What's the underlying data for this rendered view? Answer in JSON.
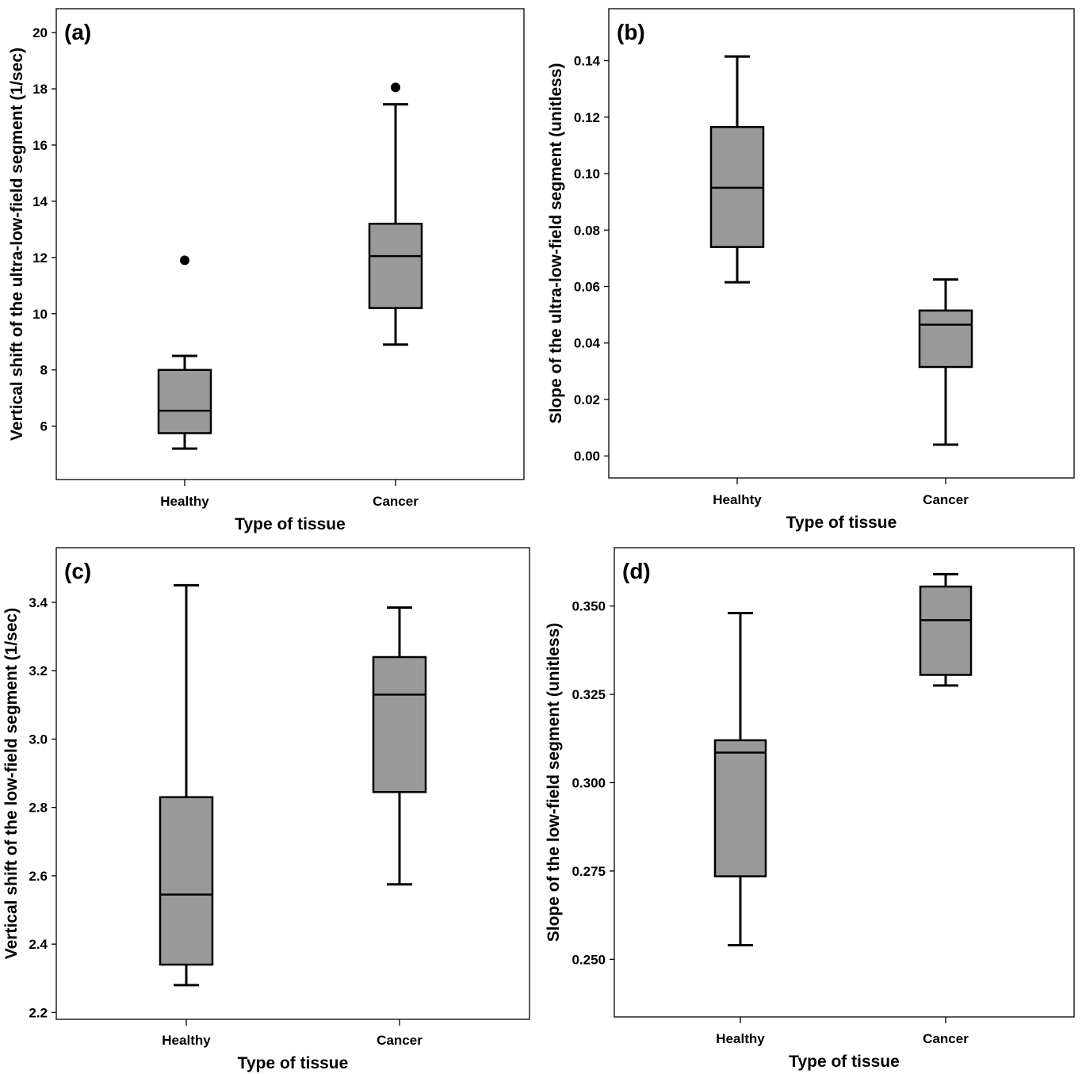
{
  "colors": {
    "box_fill": "#999999",
    "stroke": "#000000",
    "background": "#ffffff"
  },
  "chart_data": [
    {
      "type": "box",
      "panel_label": "(a)",
      "xlabel": "Type of tissue",
      "ylabel": "Vertical shift of the ultra-low-field segment (1/sec)",
      "ylim": [
        4.1,
        20.85
      ],
      "yticks": [
        6,
        8,
        10,
        12,
        14,
        16,
        18,
        20
      ],
      "ytick_labels": [
        "6",
        "8",
        "10",
        "12",
        "14",
        "16",
        "18",
        "20"
      ],
      "categories": [
        "Healthy",
        "Cancer"
      ],
      "boxes": [
        {
          "category": "Healthy",
          "whisker_low": 5.2,
          "q1": 5.75,
          "median": 6.55,
          "q3": 8.0,
          "whisker_high": 8.5,
          "outliers": [
            11.9
          ]
        },
        {
          "category": "Cancer",
          "whisker_low": 8.9,
          "q1": 10.2,
          "median": 12.05,
          "q3": 13.2,
          "whisker_high": 17.45,
          "outliers": [
            18.05
          ]
        }
      ]
    },
    {
      "type": "box",
      "panel_label": "(b)",
      "xlabel": "Type of tissue",
      "ylabel": "Slope of the ultra-low-field segment (unitless)",
      "ylim": [
        -0.0078,
        0.1584
      ],
      "yticks": [
        0.0,
        0.02,
        0.04,
        0.06,
        0.08,
        0.1,
        0.12,
        0.14
      ],
      "ytick_labels": [
        "0.00",
        "0.02",
        "0.04",
        "0.06",
        "0.08",
        "0.10",
        "0.12",
        "0.14"
      ],
      "categories": [
        "Healhty",
        "Cancer"
      ],
      "boxes": [
        {
          "category": "Healhty",
          "whisker_low": 0.0615,
          "q1": 0.074,
          "median": 0.095,
          "q3": 0.1165,
          "whisker_high": 0.1415,
          "outliers": []
        },
        {
          "category": "Cancer",
          "whisker_low": 0.004,
          "q1": 0.0315,
          "median": 0.0465,
          "q3": 0.0515,
          "whisker_high": 0.0625,
          "outliers": []
        }
      ]
    },
    {
      "type": "box",
      "panel_label": "(c)",
      "xlabel": "Type of tissue",
      "ylabel": "Vertical shift of the low-field segment (1/sec)",
      "ylim": [
        2.18,
        3.56
      ],
      "yticks": [
        2.2,
        2.4,
        2.6,
        2.8,
        3.0,
        3.2,
        3.4
      ],
      "ytick_labels": [
        "2.2",
        "2.4",
        "2.6",
        "2.8",
        "3.0",
        "3.2",
        "3.4"
      ],
      "categories": [
        "Healthy",
        "Cancer"
      ],
      "boxes": [
        {
          "category": "Healthy",
          "whisker_low": 2.28,
          "q1": 2.34,
          "median": 2.545,
          "q3": 2.83,
          "whisker_high": 3.45,
          "outliers": []
        },
        {
          "category": "Cancer",
          "whisker_low": 2.575,
          "q1": 2.845,
          "median": 3.13,
          "q3": 3.24,
          "whisker_high": 3.385,
          "outliers": []
        }
      ]
    },
    {
      "type": "box",
      "panel_label": "(d)",
      "xlabel": "Type of tissue",
      "ylabel": "Slope of the low-field segment (unitless)",
      "ylim": [
        0.2337,
        0.3665
      ],
      "yticks": [
        0.25,
        0.275,
        0.3,
        0.325,
        0.35
      ],
      "ytick_labels": [
        "0.250",
        "0.275",
        "0.300",
        "0.325",
        "0.350"
      ],
      "categories": [
        "Healthy",
        "Cancer"
      ],
      "boxes": [
        {
          "category": "Healthy",
          "whisker_low": 0.254,
          "q1": 0.2735,
          "median": 0.3085,
          "q3": 0.312,
          "whisker_high": 0.348,
          "outliers": []
        },
        {
          "category": "Cancer",
          "whisker_low": 0.3275,
          "q1": 0.3305,
          "median": 0.346,
          "q3": 0.3555,
          "whisker_high": 0.359,
          "outliers": []
        }
      ]
    }
  ]
}
